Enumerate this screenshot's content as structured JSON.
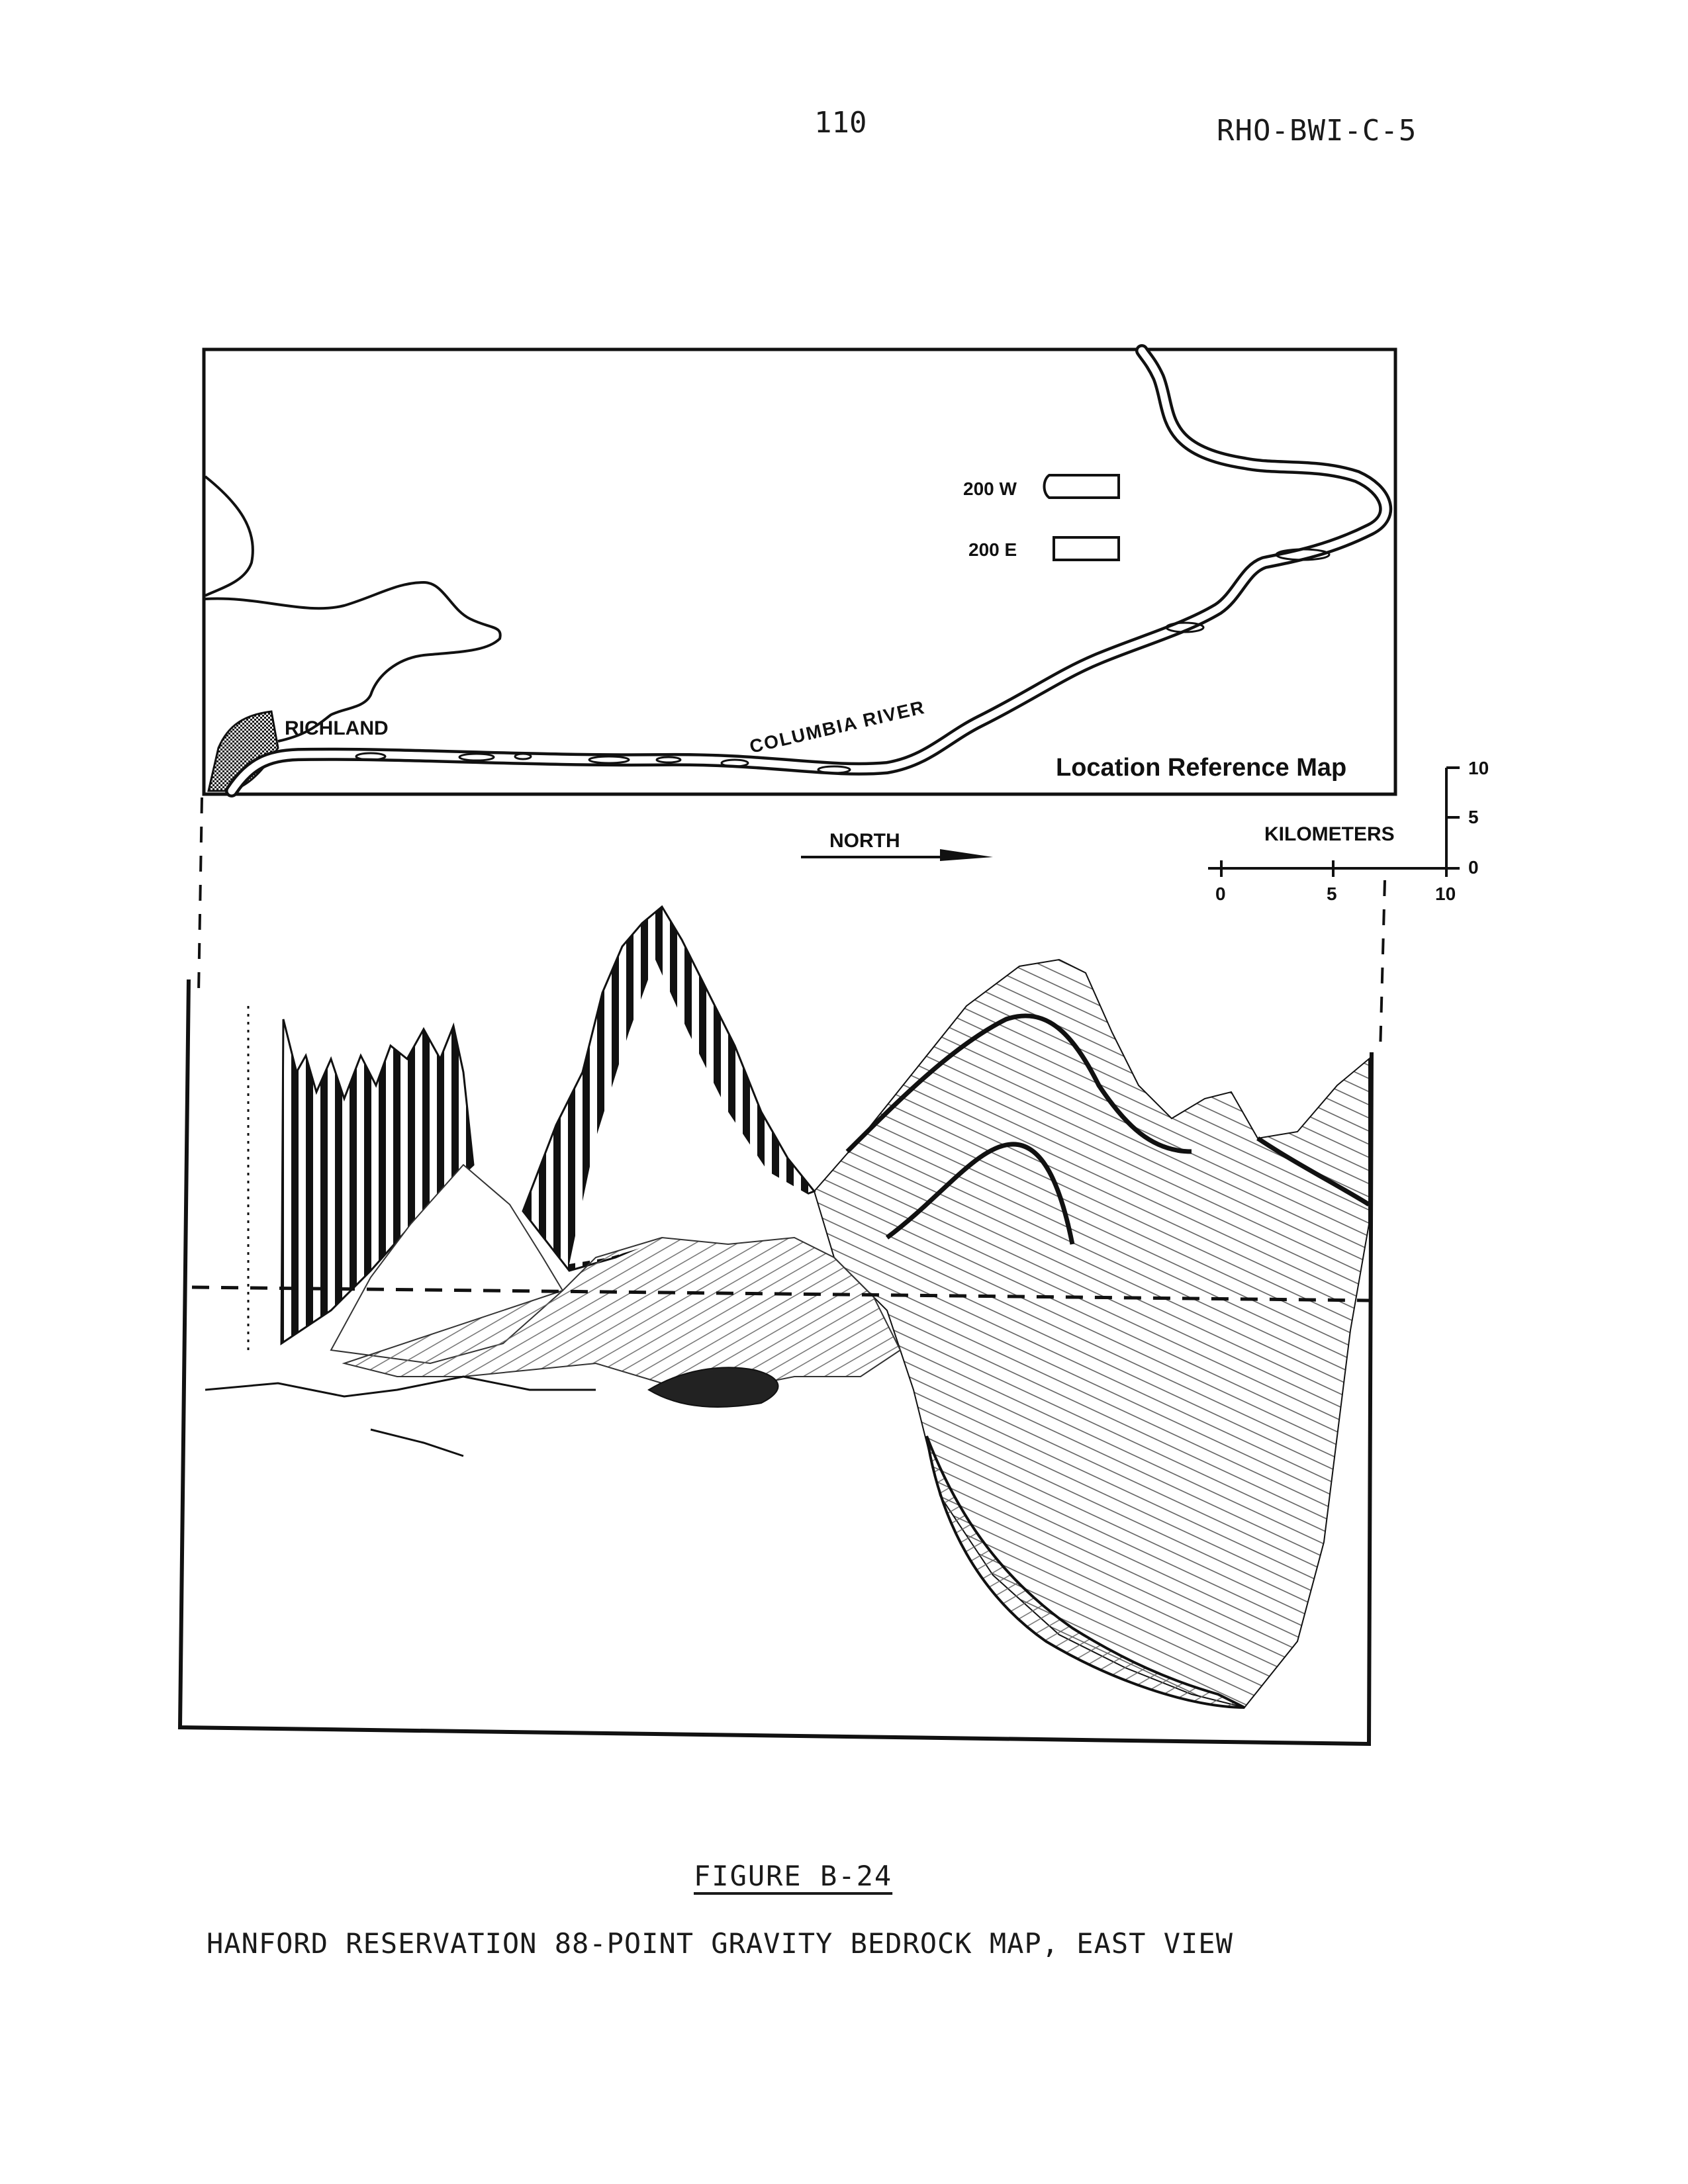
{
  "header": {
    "page_number": "110",
    "doc_id": "RHO-BWI-C-5"
  },
  "figure": {
    "map_labels": {
      "area_200w": "200 W",
      "area_200e": "200 E",
      "richland": "RICHLAND",
      "river": "COLUMBIA RIVER",
      "map_title": "Location Reference Map"
    },
    "north_label": "NORTH",
    "scale": {
      "unit_label": "KILOMETERS",
      "horizontal_ticks": [
        "0",
        "5",
        "10"
      ],
      "vertical_ticks": [
        "10",
        "5",
        "0"
      ]
    },
    "number": "FIGURE B-24",
    "caption": "HANFORD RESERVATION 88-POINT GRAVITY BEDROCK MAP, EAST VIEW"
  },
  "colors": {
    "ink": "#111111",
    "paper": "#ffffff",
    "shade": "#6b6b6b"
  }
}
